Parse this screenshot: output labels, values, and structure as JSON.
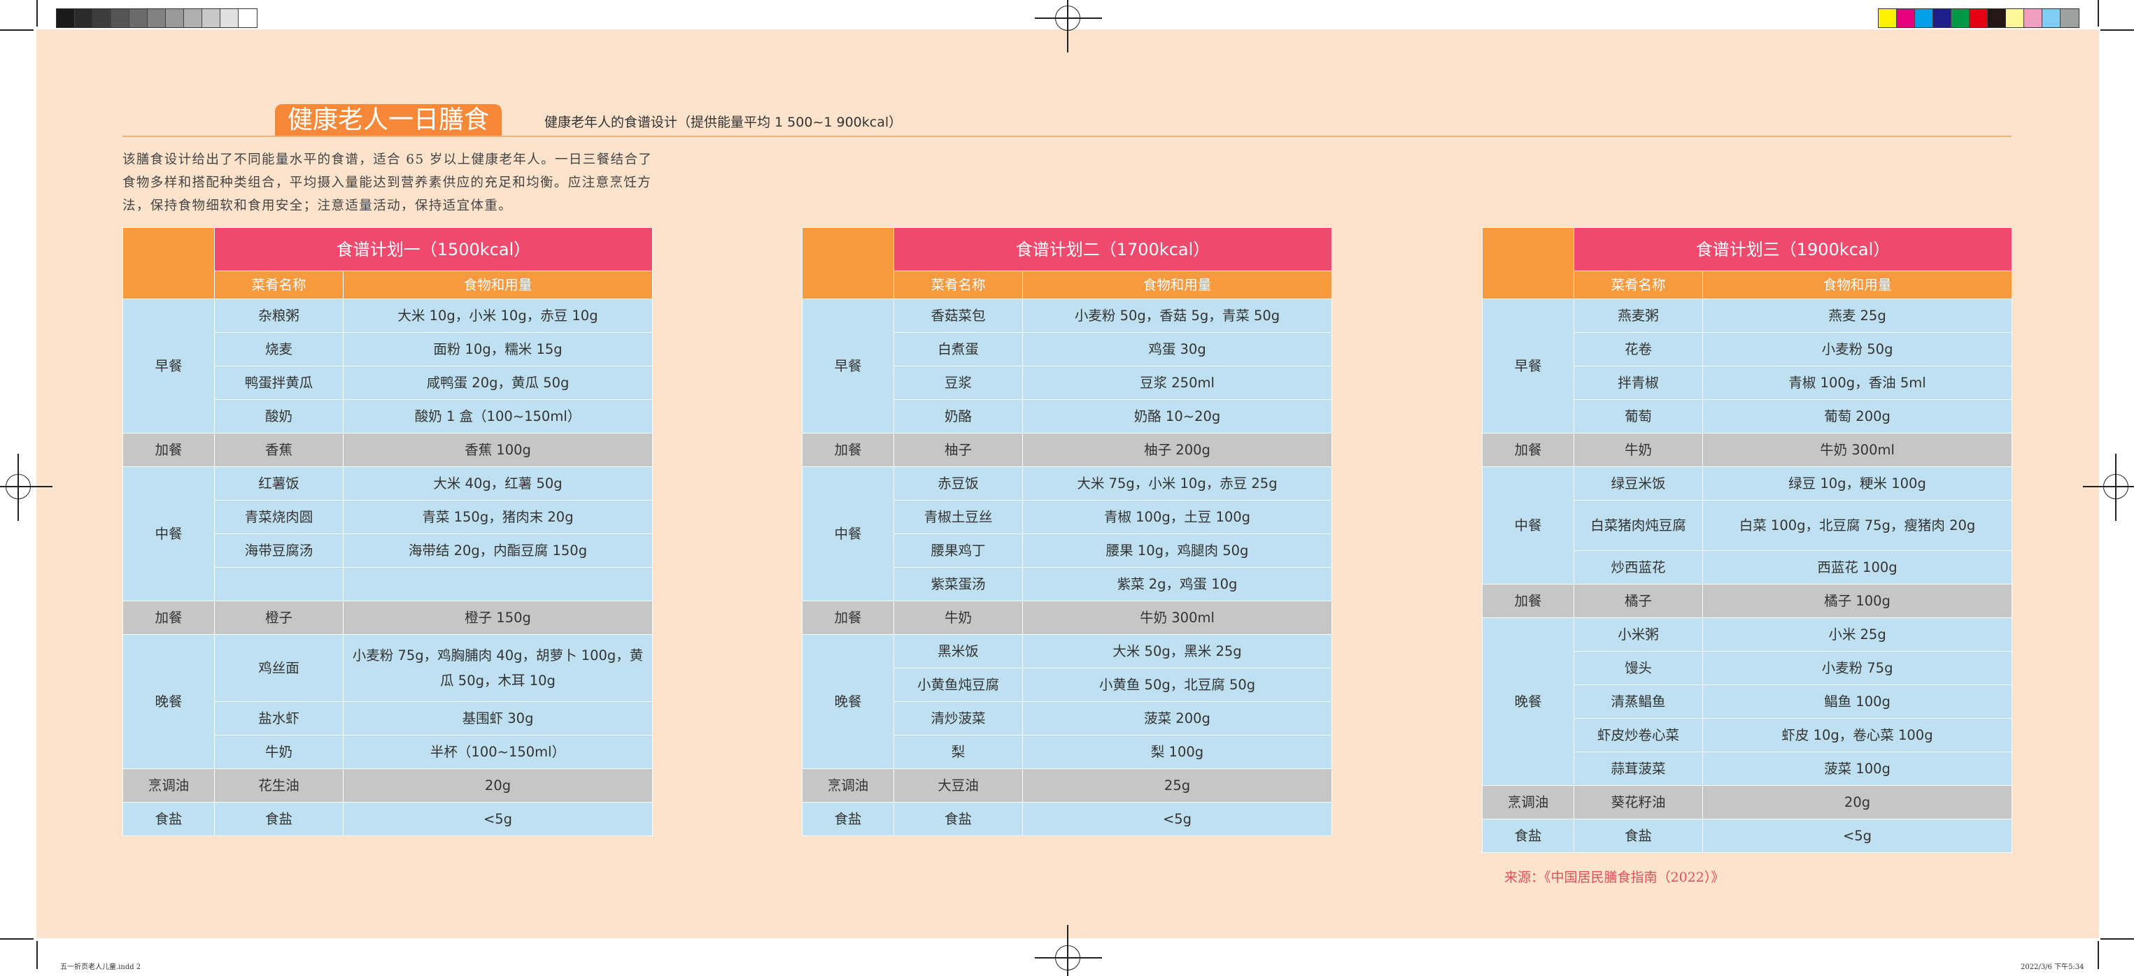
{
  "header": {
    "title": "健康老人一日膳食",
    "subtitle": "健康老年人的食谱设计（提供能量平均 1 500~1 900kcal）",
    "intro": "该膳食设计给出了不同能量水平的食谱，适合 65 岁以上健康老年人。一日三餐结合了食物多样和搭配种类组合，平均摄入量能达到营养素供应的充足和均衡。应注意烹饪方法，保持食物细软和食用安全；注意适量活动，保持适宜体重。"
  },
  "colors": {
    "page": "#fde3cc",
    "orange": "#f6993f",
    "pink": "#ef4a6d",
    "blue": "#bee0f0",
    "gray": "#c6c6c6",
    "source": "#e0505a"
  },
  "swatches_left": [
    "#1a1a1a",
    "#2b2b2b",
    "#3d3d3d",
    "#555555",
    "#6b6b6b",
    "#828282",
    "#999999",
    "#b0b0b0",
    "#c8c8c8",
    "#e0e0e0",
    "#ffffff"
  ],
  "swatches_right": [
    "#fff200",
    "#e6007e",
    "#00a0e9",
    "#1d2088",
    "#009944",
    "#e60012",
    "#231815",
    "#fff799",
    "#f19ec2",
    "#7ecef4",
    "#9fa0a0"
  ],
  "columns": {
    "dish": "菜肴名称",
    "food": "食物和用量"
  },
  "plans": [
    {
      "title": "食谱计划一（1500kcal）",
      "groups": [
        {
          "meal": "早餐",
          "type": "blue",
          "rows": [
            [
              "杂粮粥",
              "大米 10g，小米 10g，赤豆 10g"
            ],
            [
              "烧麦",
              "面粉 10g，糯米 15g"
            ],
            [
              "鸭蛋拌黄瓜",
              "咸鸭蛋 20g，黄瓜 50g"
            ],
            [
              "酸奶",
              "酸奶 1 盒（100~150ml）"
            ]
          ]
        },
        {
          "meal": "加餐",
          "type": "gray",
          "rows": [
            [
              "香蕉",
              "香蕉 100g"
            ]
          ]
        },
        {
          "meal": "中餐",
          "type": "blue",
          "rows": [
            [
              "红薯饭",
              "大米 40g，红薯 50g"
            ],
            [
              "青菜烧肉圆",
              "青菜 150g，猪肉末 20g"
            ],
            [
              "海带豆腐汤",
              "海带结 20g，内酯豆腐 150g"
            ],
            [
              "",
              ""
            ]
          ]
        },
        {
          "meal": "加餐",
          "type": "gray",
          "rows": [
            [
              "橙子",
              "橙子 150g"
            ]
          ]
        },
        {
          "meal": "晚餐",
          "type": "blue",
          "rows": [
            [
              "鸡丝面",
              "小麦粉 75g，鸡胸脯肉 40g，胡萝卜 100g，黄瓜 50g，木耳 10g"
            ],
            [
              "盐水虾",
              "基围虾 30g"
            ],
            [
              "牛奶",
              "半杯（100~150ml）"
            ]
          ]
        },
        {
          "meal": "烹调油",
          "type": "gray",
          "rows": [
            [
              "花生油",
              "20g"
            ]
          ]
        },
        {
          "meal": "食盐",
          "type": "blue",
          "rows": [
            [
              "食盐",
              "<5g"
            ]
          ]
        }
      ]
    },
    {
      "title": "食谱计划二（1700kcal）",
      "groups": [
        {
          "meal": "早餐",
          "type": "blue",
          "rows": [
            [
              "香菇菜包",
              "小麦粉 50g，香菇 5g，青菜 50g"
            ],
            [
              "白煮蛋",
              "鸡蛋 30g"
            ],
            [
              "豆浆",
              "豆浆 250ml"
            ],
            [
              "奶酪",
              "奶酪 10~20g"
            ]
          ]
        },
        {
          "meal": "加餐",
          "type": "gray",
          "rows": [
            [
              "柚子",
              "柚子 200g"
            ]
          ]
        },
        {
          "meal": "中餐",
          "type": "blue",
          "rows": [
            [
              "赤豆饭",
              "大米 75g，小米 10g，赤豆 25g"
            ],
            [
              "青椒土豆丝",
              "青椒 100g，土豆 100g"
            ],
            [
              "腰果鸡丁",
              "腰果 10g，鸡腿肉 50g"
            ],
            [
              "紫菜蛋汤",
              "紫菜 2g，鸡蛋 10g"
            ]
          ]
        },
        {
          "meal": "加餐",
          "type": "gray",
          "rows": [
            [
              "牛奶",
              "牛奶 300ml"
            ]
          ]
        },
        {
          "meal": "晚餐",
          "type": "blue",
          "rows": [
            [
              "黑米饭",
              "大米 50g，黑米 25g"
            ],
            [
              "小黄鱼炖豆腐",
              "小黄鱼 50g，北豆腐 50g"
            ],
            [
              "清炒菠菜",
              "菠菜 200g"
            ],
            [
              "梨",
              "梨 100g"
            ]
          ]
        },
        {
          "meal": "烹调油",
          "type": "gray",
          "rows": [
            [
              "大豆油",
              "25g"
            ]
          ]
        },
        {
          "meal": "食盐",
          "type": "blue",
          "rows": [
            [
              "食盐",
              "<5g"
            ]
          ]
        }
      ]
    },
    {
      "title": "食谱计划三（1900kcal）",
      "groups": [
        {
          "meal": "早餐",
          "type": "blue",
          "rows": [
            [
              "燕麦粥",
              "燕麦 25g"
            ],
            [
              "花卷",
              "小麦粉 50g"
            ],
            [
              "拌青椒",
              "青椒 100g，香油 5ml"
            ],
            [
              "葡萄",
              "葡萄 200g"
            ]
          ]
        },
        {
          "meal": "加餐",
          "type": "gray",
          "rows": [
            [
              "牛奶",
              "牛奶 300ml"
            ]
          ]
        },
        {
          "meal": "中餐",
          "type": "blue",
          "rows": [
            [
              "绿豆米饭",
              "绿豆 10g，粳米 100g"
            ],
            [
              "白菜猪肉炖豆腐",
              "白菜 100g，北豆腐 75g，瘦猪肉 20g"
            ],
            [
              "炒西蓝花",
              "西蓝花 100g"
            ]
          ]
        },
        {
          "meal": "加餐",
          "type": "gray",
          "rows": [
            [
              "橘子",
              "橘子 100g"
            ]
          ]
        },
        {
          "meal": "晚餐",
          "type": "blue",
          "rows": [
            [
              "小米粥",
              "小米 25g"
            ],
            [
              "馒头",
              "小麦粉 75g"
            ],
            [
              "清蒸鲳鱼",
              "鲳鱼 100g"
            ],
            [
              "虾皮炒卷心菜",
              "虾皮 10g，卷心菜 100g"
            ],
            [
              "蒜茸菠菜",
              "菠菜 100g"
            ]
          ]
        },
        {
          "meal": "烹调油",
          "type": "gray",
          "rows": [
            [
              "葵花籽油",
              "20g"
            ]
          ]
        },
        {
          "meal": "食盐",
          "type": "blue",
          "rows": [
            [
              "食盐",
              "<5g"
            ]
          ]
        }
      ]
    }
  ],
  "source": "来源：《中国居民膳食指南（2022）》",
  "slug": {
    "file": "五一折页老人儿童.indd 2",
    "date": "2022/3/6 下午5:34"
  }
}
